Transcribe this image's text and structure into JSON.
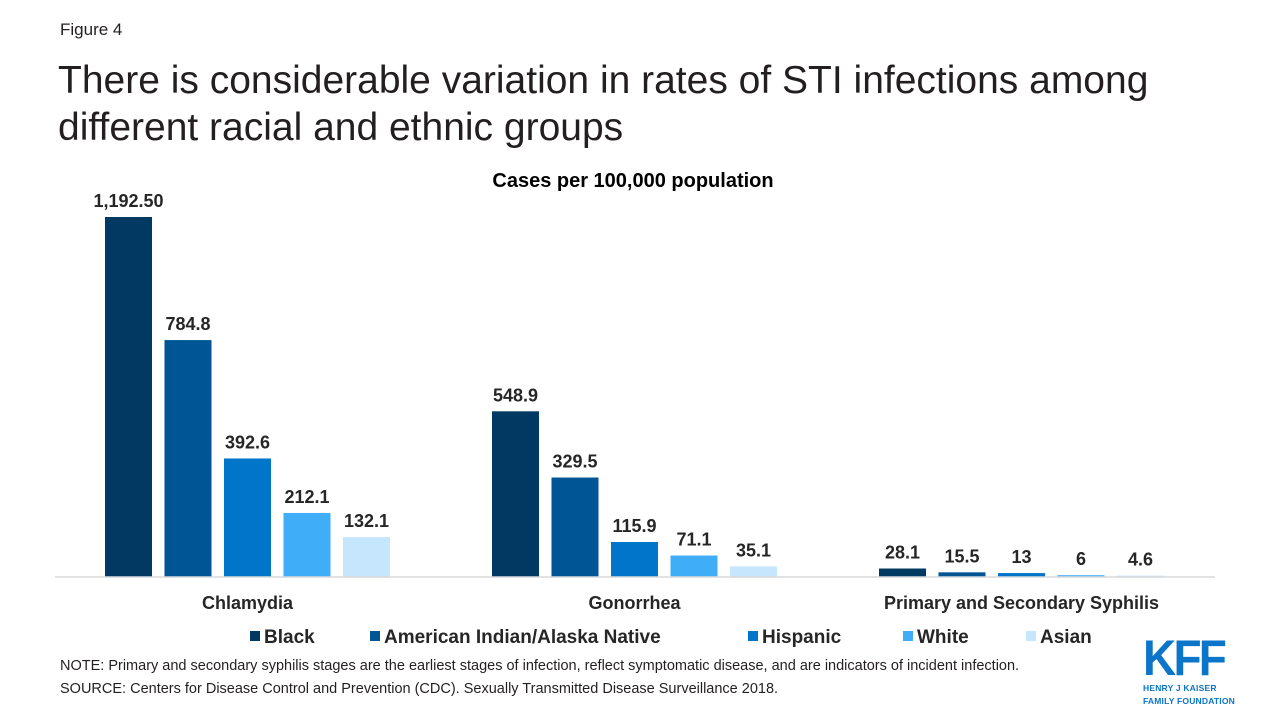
{
  "figure_label": "Figure 4",
  "title": "There is considerable variation in rates of STI infections among different racial and ethnic groups",
  "note": "NOTE: Primary and secondary syphilis stages are the earliest stages of infection, reflect symptomatic disease, and are indicators of incident infection.",
  "source": "SOURCE:  Centers for Disease Control and Prevention (CDC). Sexually Transmitted  Disease Surveillance 2018.",
  "logo": {
    "mark": "KFF",
    "line1": "HENRY J KAISER",
    "line2": "FAMILY FOUNDATION"
  },
  "chart_data": {
    "type": "bar",
    "title": "Cases per 100,000 population",
    "categories": [
      "Chlamydia",
      "Gonorrhea",
      "Primary and Secondary Syphilis"
    ],
    "series": [
      {
        "name": "Black",
        "color": "#003a63",
        "values": [
          1192.5,
          548.9,
          28.1
        ],
        "labels": [
          "1,192.50",
          "548.9",
          "28.1"
        ]
      },
      {
        "name": "American Indian/Alaska Native",
        "color": "#005695",
        "values": [
          784.8,
          329.5,
          15.5
        ],
        "labels": [
          "784.8",
          "329.5",
          "15.5"
        ]
      },
      {
        "name": "Hispanic",
        "color": "#0075c9",
        "values": [
          392.6,
          115.9,
          13
        ],
        "labels": [
          "392.6",
          "115.9",
          "13"
        ]
      },
      {
        "name": "White",
        "color": "#40adf9",
        "values": [
          212.1,
          71.1,
          6
        ],
        "labels": [
          "212.1",
          "71.1",
          "6"
        ]
      },
      {
        "name": "Asian",
        "color": "#c5e6fd",
        "values": [
          132.1,
          35.1,
          4.6
        ],
        "labels": [
          "132.1",
          "35.1",
          "4.6"
        ]
      }
    ],
    "xlabel": "",
    "ylabel": "",
    "ylim": [
      0,
      1192.5
    ],
    "legend_position": "bottom",
    "grid": false
  }
}
